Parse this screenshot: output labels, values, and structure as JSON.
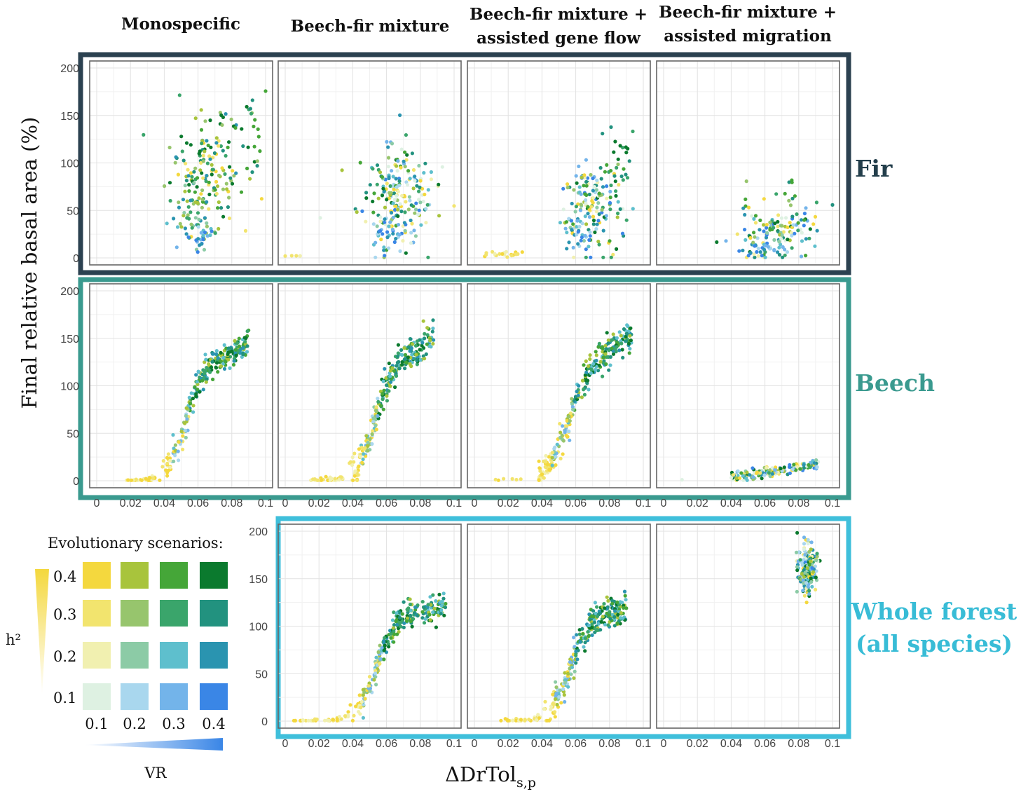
{
  "chart_data": {
    "type": "scatter",
    "column_titles": [
      [
        "Monospecific"
      ],
      [
        "Beech-fir mixture"
      ],
      [
        "Beech-fir mixture +",
        "assisted gene flow"
      ],
      [
        "Beech-fir mixture +",
        "assisted migration"
      ]
    ],
    "row_labels": [
      {
        "lines": [
          "Fir"
        ],
        "color": "#233e4b"
      },
      {
        "lines": [
          "Beech"
        ],
        "color": "#3a9a8f"
      },
      {
        "lines": [
          "Whole forest",
          "(all species)"
        ],
        "color": "#38bcd6"
      }
    ],
    "frame_colors": [
      "#2b4150",
      "#3a9a8f",
      "#3fbfdb"
    ],
    "ylabel": "Final relative basal area (%)",
    "xlabel": "ΔDrTol",
    "xlabel_sub": "s,p",
    "xlim": [
      0,
      0.1
    ],
    "ylim": [
      0,
      200
    ],
    "xticks": [
      0,
      0.02,
      0.04,
      0.06,
      0.08,
      0.1
    ],
    "xtick_labels": [
      "0",
      "0.02",
      "0.04",
      "0.06",
      "0.08",
      "0.1"
    ],
    "yticks": [
      0,
      50,
      100,
      150,
      200
    ],
    "ytick_labels": [
      "0",
      "50",
      "100",
      "150",
      "200"
    ],
    "legend": {
      "title": "Evolutionary scenarios:",
      "h2_label": "h²",
      "vr_label": "VR",
      "h2_levels": [
        "0.4",
        "0.3",
        "0.2",
        "0.1"
      ],
      "vr_levels": [
        "0.1",
        "0.2",
        "0.3",
        "0.4"
      ],
      "colors": [
        [
          "#f4d83e",
          "#a8c43c",
          "#45a638",
          "#0b7a2e"
        ],
        [
          "#f2e46e",
          "#97c56d",
          "#3aa56b",
          "#22927f"
        ],
        [
          "#f1f0b0",
          "#8ccba6",
          "#5ebfcd",
          "#2a94b0"
        ],
        [
          "#def1e2",
          "#a9d7ee",
          "#73b4ea",
          "#3a86e6"
        ]
      ]
    },
    "panels": [
      {
        "row": 0,
        "col": 0,
        "clusters": [
          {
            "x": 0.066,
            "y": 95,
            "sx": 0.011,
            "sy": 30,
            "n": 150,
            "pal": "hi"
          },
          {
            "x": 0.058,
            "y": 45,
            "sx": 0.007,
            "sy": 15,
            "n": 50,
            "pal": "mid"
          },
          {
            "x": 0.061,
            "y": 22,
            "sx": 0.004,
            "sy": 7,
            "n": 20,
            "pal": "blue"
          },
          {
            "x": 0.088,
            "y": 135,
            "sx": 0.006,
            "sy": 25,
            "n": 18,
            "pal": "dark"
          }
        ]
      },
      {
        "row": 0,
        "col": 1,
        "clusters": [
          {
            "x": 0.005,
            "y": 2,
            "sx": 0.004,
            "sy": 1.5,
            "n": 5,
            "pal": "yellow"
          },
          {
            "x": 0.065,
            "y": 65,
            "sx": 0.011,
            "sy": 27,
            "n": 210,
            "pal": "all"
          },
          {
            "x": 0.06,
            "y": 28,
            "sx": 0.007,
            "sy": 10,
            "n": 30,
            "pal": "blue"
          }
        ]
      },
      {
        "row": 0,
        "col": 2,
        "clusters": [
          {
            "x": 0.015,
            "y": 3,
            "sx": 0.008,
            "sy": 2,
            "n": 20,
            "pal": "yellow"
          },
          {
            "x": 0.069,
            "y": 58,
            "sx": 0.009,
            "sy": 22,
            "n": 140,
            "pal": "all"
          },
          {
            "x": 0.062,
            "y": 25,
            "sx": 0.005,
            "sy": 10,
            "n": 30,
            "pal": "blue"
          },
          {
            "x": 0.085,
            "y": 90,
            "sx": 0.006,
            "sy": 25,
            "n": 30,
            "pal": "dark"
          }
        ]
      },
      {
        "row": 0,
        "col": 3,
        "clusters": [
          {
            "x": 0.066,
            "y": 28,
            "sx": 0.011,
            "sy": 15,
            "n": 120,
            "pal": "all"
          },
          {
            "x": 0.06,
            "y": 8,
            "sx": 0.011,
            "sy": 4,
            "n": 25,
            "pal": "blue"
          },
          {
            "x": 0.082,
            "y": 50,
            "sx": 0.008,
            "sy": 20,
            "n": 15,
            "pal": "dark"
          }
        ]
      },
      {
        "row": 1,
        "col": 0,
        "curve": {
          "x0": 0.0515,
          "k": 0.005,
          "max": 110,
          "slope": 900,
          "xmin": 0.016,
          "xmax": 0.09,
          "n": 280,
          "jy": 7
        }
      },
      {
        "row": 1,
        "col": 1,
        "curve": {
          "x0": 0.052,
          "k": 0.005,
          "max": 110,
          "slope": 1100,
          "xmin": 0.015,
          "xmax": 0.088,
          "n": 290,
          "jy": 9
        }
      },
      {
        "row": 1,
        "col": 2,
        "curve": {
          "x0": 0.055,
          "k": 0.006,
          "max": 115,
          "slope": 1000,
          "xmin": 0.038,
          "xmax": 0.093,
          "n": 270,
          "jy": 8
        },
        "clusters": [
          {
            "x": 0.022,
            "y": 1,
            "sx": 0.006,
            "sy": 1,
            "n": 6,
            "pal": "yellow"
          }
        ]
      },
      {
        "row": 1,
        "col": 3,
        "line": {
          "xmin": 0.04,
          "xmax": 0.092,
          "y0": 4,
          "y1": 17,
          "n": 160,
          "jy": 3
        },
        "clusters": [
          {
            "x": 0.012,
            "y": 1,
            "sx": 0.001,
            "sy": 0.5,
            "n": 1,
            "pal": "light"
          }
        ]
      },
      {
        "row": 2,
        "col": 1,
        "curve": {
          "x0": 0.054,
          "k": 0.0055,
          "max": 110,
          "slope": 300,
          "xmin": 0.003,
          "xmax": 0.095,
          "n": 300,
          "jy": 7
        }
      },
      {
        "row": 2,
        "col": 2,
        "curve": {
          "x0": 0.056,
          "k": 0.0055,
          "max": 105,
          "slope": 400,
          "xmin": 0.015,
          "xmax": 0.09,
          "n": 290,
          "jy": 8
        }
      },
      {
        "row": 2,
        "col": 3,
        "clusters": [
          {
            "x": 0.085,
            "y": 160,
            "sx": 0.0025,
            "sy": 12,
            "n": 200,
            "pal": "all"
          }
        ]
      }
    ]
  }
}
